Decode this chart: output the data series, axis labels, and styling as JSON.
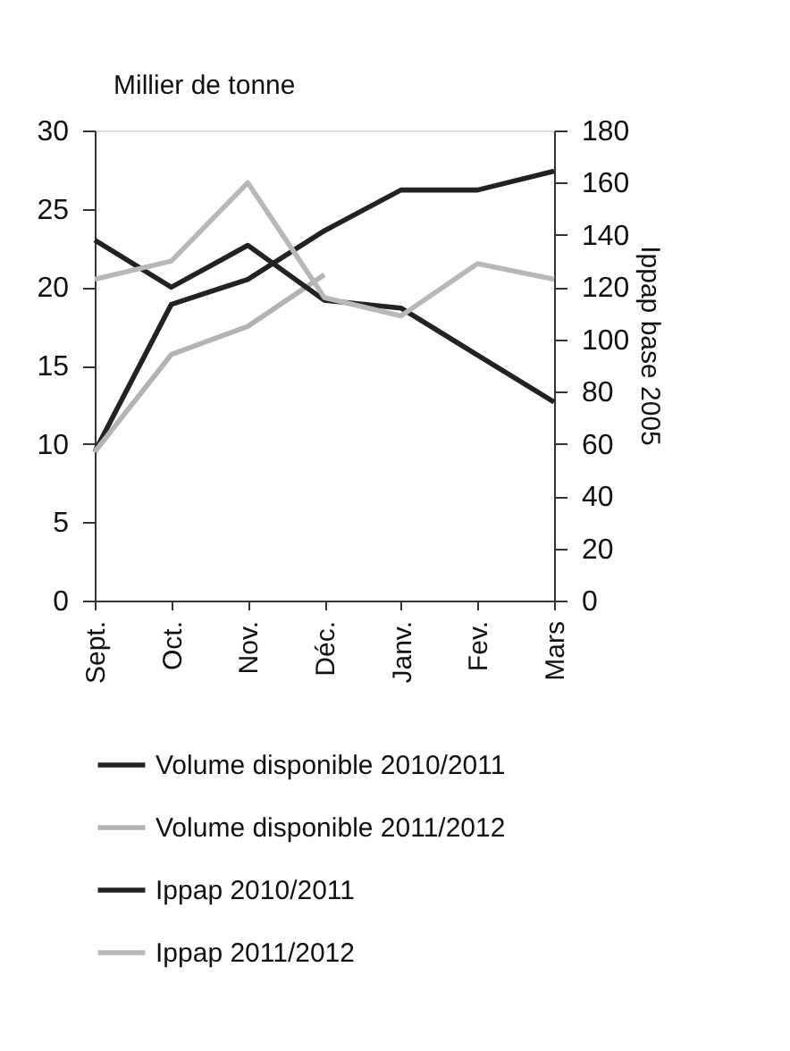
{
  "chart_data": {
    "type": "line",
    "ylabel": "Millier de tonne",
    "y2label": "Ippap base 2005",
    "categories": [
      "Sept.",
      "Oct.",
      "Nov.",
      "Déc.",
      "Janv.",
      "Fev.",
      "Mars"
    ],
    "series": [
      {
        "name": "Volume disponible 2010/2011",
        "color": "#222222",
        "values": [
          9.5,
          18.9,
          20.5,
          23.6,
          26.2,
          26.2,
          27.4
        ]
      },
      {
        "name": "Volume disponible 2011/2012",
        "color": "#b3b3b3",
        "values": [
          9.5,
          15.7,
          17.5,
          20.8,
          null,
          null,
          null
        ]
      },
      {
        "name": "Ippap 2010/2011",
        "color": "#222222",
        "axis": "y2",
        "values": [
          138,
          120,
          136,
          115,
          112,
          94,
          76
        ]
      },
      {
        "name": "Ippap 2011/2012",
        "color": "#b8b8b8",
        "axis": "y2",
        "values": [
          123,
          130,
          160,
          116,
          109,
          129,
          123
        ]
      }
    ],
    "ylim": [
      0,
      30
    ],
    "yticks": [
      0,
      5,
      10,
      15,
      20,
      25,
      30
    ],
    "y2lim": [
      0,
      180
    ],
    "y2ticks": [
      0,
      20,
      40,
      60,
      80,
      100,
      120,
      140,
      160,
      180
    ],
    "grid": false,
    "legend": "bottom",
    "marker": "none",
    "line_style": "solid"
  }
}
